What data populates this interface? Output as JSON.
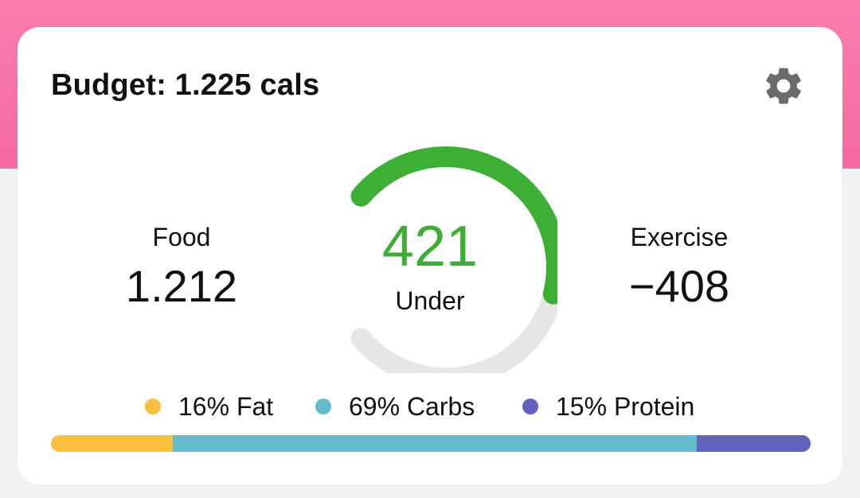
{
  "budget": {
    "title": "Budget: 1.225 cals"
  },
  "settings": {
    "icon": "gear-icon",
    "color": "#6b6b6b"
  },
  "food": {
    "label": "Food",
    "value": "1.212"
  },
  "exercise": {
    "label": "Exercise",
    "value": "−408"
  },
  "gauge": {
    "value": "421",
    "caption": "Under",
    "progress_fraction": 0.55,
    "progress_color": "#3daf35",
    "track_color": "#e6e6e6"
  },
  "macros": [
    {
      "label": "16% Fat",
      "percent": 16,
      "color": "#fbbf40"
    },
    {
      "label": "69% Carbs",
      "percent": 69,
      "color": "#62bccb"
    },
    {
      "label": "15% Protein",
      "percent": 15,
      "color": "#6062bd"
    }
  ],
  "colors": {
    "header_pink": "#f67aab",
    "page_background": "#f1f1f3",
    "card_background": "#ffffff"
  }
}
